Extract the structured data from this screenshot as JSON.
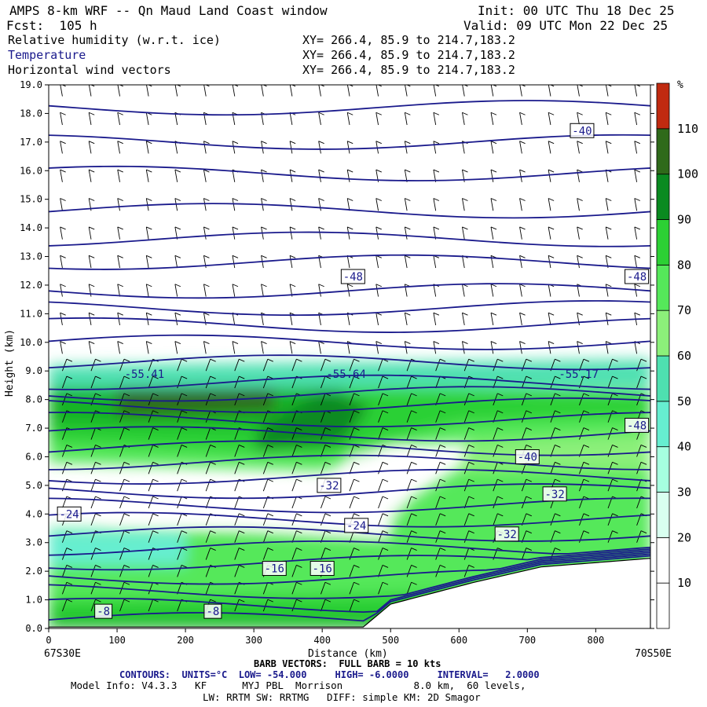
{
  "header": {
    "title": "AMPS 8-km WRF -- Qn Maud Land Coast window",
    "forecast": "Fcst:  105 h",
    "init": "Init: 00 UTC Thu 18 Dec 25",
    "valid": "Valid: 09 UTC Mon 22 Dec 25",
    "fields": [
      {
        "label": "Relative humidity (w.r.t. ice)",
        "xy": "XY= 266.4, 85.9 to 214.7,183.2"
      },
      {
        "label": "Temperature",
        "xy": "XY= 266.4, 85.9 to 214.7,183.2"
      },
      {
        "label": "Horizontal wind vectors",
        "xy": "XY= 266.4, 85.9 to 214.7,183.2"
      }
    ]
  },
  "colors": {
    "contour": "#1a1a8c",
    "terrain": "#ffffff",
    "rh_scale": [
      "#ffffff",
      "#ffffff",
      "#ffffff",
      "#d9fff0",
      "#a6ffe0",
      "#66eed0",
      "#4ee0b0",
      "#8cf07a",
      "#55e85a",
      "#2cd034",
      "#14b428",
      "#0a8a20",
      "#2f6a1a",
      "#4a5a10",
      "#c02a10"
    ]
  },
  "chart_data": {
    "type": "cross-section",
    "xlabel": "Distance (km)",
    "ylabel": "Height (km)",
    "xlim": [
      0,
      880
    ],
    "ylim": [
      0,
      19
    ],
    "x_ticks": [
      "0",
      "100",
      "200",
      "300",
      "400",
      "500",
      "600",
      "700",
      "800"
    ],
    "y_ticks": [
      "0.0",
      "1.0",
      "2.0",
      "3.0",
      "4.0",
      "5.0",
      "6.0",
      "7.0",
      "8.0",
      "9.0",
      "10.0",
      "11.0",
      "12.0",
      "13.0",
      "14.0",
      "15.0",
      "16.0",
      "17.0",
      "18.0",
      "19.0"
    ],
    "left_endpoint": "67S30E",
    "right_endpoint": "70S50E",
    "colorbar": {
      "unit": "%",
      "labels": [
        "10",
        "20",
        "30",
        "40",
        "50",
        "60",
        "70",
        "80",
        "90",
        "100",
        "110"
      ]
    },
    "temperature_labels": [
      {
        "text": "-40",
        "x": 780,
        "y": 17.4
      },
      {
        "text": "-48",
        "x": 445,
        "y": 12.3
      },
      {
        "text": "-48",
        "x": 860,
        "y": 12.3
      },
      {
        "text": "-55.41",
        "x": 140,
        "y": 8.9
      },
      {
        "text": "-55.64",
        "x": 435,
        "y": 8.9
      },
      {
        "text": "-55.17",
        "x": 775,
        "y": 8.9
      },
      {
        "text": "-48",
        "x": 860,
        "y": 7.1
      },
      {
        "text": "-40",
        "x": 700,
        "y": 6.0
      },
      {
        "text": "-32",
        "x": 410,
        "y": 5.0
      },
      {
        "text": "-32",
        "x": 740,
        "y": 4.7
      },
      {
        "text": "-24",
        "x": 30,
        "y": 4.0
      },
      {
        "text": "-24",
        "x": 450,
        "y": 3.6
      },
      {
        "text": "-32",
        "x": 670,
        "y": 3.3
      },
      {
        "text": "-16",
        "x": 330,
        "y": 2.1
      },
      {
        "text": "-16",
        "x": 400,
        "y": 2.1
      },
      {
        "text": "-8",
        "x": 80,
        "y": 0.6
      },
      {
        "text": "-8",
        "x": 240,
        "y": 0.6
      }
    ]
  },
  "footer": {
    "barb_vectors": "BARB VECTORS:  FULL BARB = 10 kts",
    "contours": "CONTOURS:  UNITS=°C  LOW= -54.000     HIGH= -6.0000     INTERVAL=   2.0000",
    "model_line1": "Model Info: V4.3.3   KF      MYJ PBL  Morrison            8.0 km,  60 levels,",
    "model_line2": "LW: RRTM SW: RRTMG   DIFF: simple KM: 2D Smagor"
  }
}
